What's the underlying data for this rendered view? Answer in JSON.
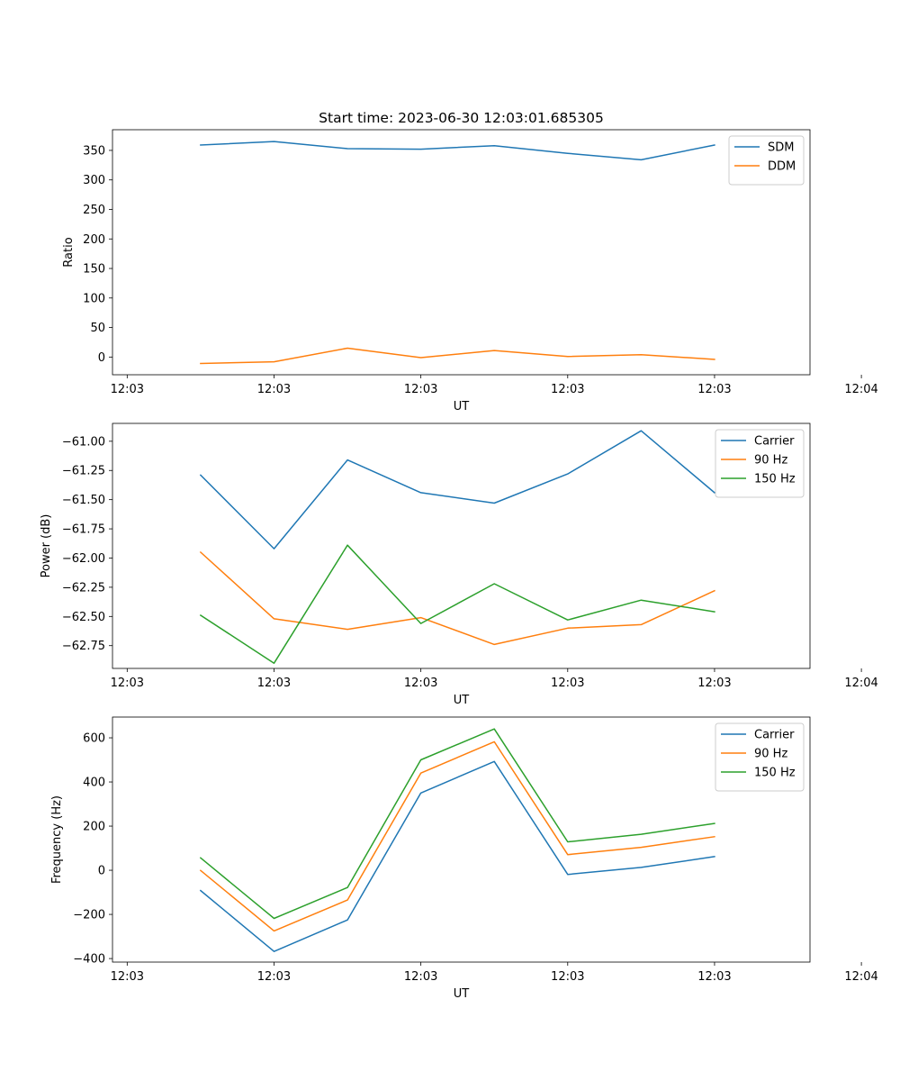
{
  "figure_title": "Start time: 2023-06-30 12:03:01.685305",
  "colors": {
    "c0": "#1f77b4",
    "c1": "#ff7f0e",
    "c2": "#2ca02c"
  },
  "chart_data": [
    {
      "type": "line",
      "title": "Start time: 2023-06-30 12:03:01.685305",
      "xlabel": "UT",
      "ylabel": "Ratio",
      "x": [
        1,
        2,
        3,
        4,
        5,
        6,
        7,
        8
      ],
      "xtick_positions": [
        0,
        2,
        4,
        6,
        8,
        10
      ],
      "xtick_labels": [
        "12:03",
        "12:03",
        "12:03",
        "12:03",
        "12:03",
        "12:04"
      ],
      "xlim": [
        -0.2,
        9.3
      ],
      "ylim": [
        -30,
        385
      ],
      "yticks": [
        0,
        50,
        100,
        150,
        200,
        250,
        300,
        350
      ],
      "ytick_labels": [
        "0",
        "50",
        "100",
        "150",
        "200",
        "250",
        "300",
        "350"
      ],
      "legend": "top-right",
      "series": [
        {
          "name": "SDM",
          "color": "#1f77b4",
          "values": [
            359,
            365,
            353,
            352,
            358,
            345,
            334,
            359
          ]
        },
        {
          "name": "DDM",
          "color": "#ff7f0e",
          "values": [
            -11,
            -8,
            15,
            -1,
            11,
            1,
            4,
            -4
          ]
        }
      ]
    },
    {
      "type": "line",
      "title": "",
      "xlabel": "UT",
      "ylabel": "Power (dB)",
      "x": [
        1,
        2,
        3,
        4,
        5,
        6,
        7,
        8
      ],
      "xtick_positions": [
        0,
        2,
        4,
        6,
        8,
        10
      ],
      "xtick_labels": [
        "12:03",
        "12:03",
        "12:03",
        "12:03",
        "12:03",
        "12:04"
      ],
      "xlim": [
        -0.2,
        9.3
      ],
      "ylim": [
        -62.945,
        -60.847
      ],
      "yticks": [
        -62.75,
        -62.5,
        -62.25,
        -62.0,
        -61.75,
        -61.5,
        -61.25,
        -61.0
      ],
      "ytick_labels": [
        "−62.75",
        "−62.50",
        "−62.25",
        "−62.00",
        "−61.75",
        "−61.50",
        "−61.25",
        "−61.00"
      ],
      "legend": "top-right",
      "series": [
        {
          "name": "Carrier",
          "color": "#1f77b4",
          "values": [
            -61.29,
            -61.92,
            -61.16,
            -61.44,
            -61.53,
            -61.28,
            -60.91,
            -61.44
          ]
        },
        {
          "name": "90 Hz",
          "color": "#ff7f0e",
          "values": [
            -61.95,
            -62.52,
            -62.61,
            -62.51,
            -62.74,
            -62.6,
            -62.57,
            -62.28
          ]
        },
        {
          "name": "150 Hz",
          "color": "#2ca02c",
          "values": [
            -62.49,
            -62.9,
            -61.89,
            -62.56,
            -62.22,
            -62.53,
            -62.36,
            -62.46
          ]
        }
      ]
    },
    {
      "type": "line",
      "title": "",
      "xlabel": "UT",
      "ylabel": "Frequency (Hz)",
      "x": [
        1,
        2,
        3,
        4,
        5,
        6,
        7,
        8
      ],
      "xtick_positions": [
        0,
        2,
        4,
        6,
        8,
        10
      ],
      "xtick_labels": [
        "12:03",
        "12:03",
        "12:03",
        "12:03",
        "12:03",
        "12:04"
      ],
      "xlim": [
        -0.2,
        9.3
      ],
      "ylim": [
        -416,
        694
      ],
      "yticks": [
        -400,
        -200,
        0,
        200,
        400,
        600
      ],
      "ytick_labels": [
        "−400",
        "−200",
        "0",
        "200",
        "400",
        "600"
      ],
      "legend": "top-right",
      "series": [
        {
          "name": "Carrier",
          "color": "#1f77b4",
          "values": [
            -92,
            -368,
            -225,
            350,
            493,
            -19,
            13,
            62
          ]
        },
        {
          "name": "90 Hz",
          "color": "#ff7f0e",
          "values": [
            -1,
            -275,
            -135,
            440,
            582,
            71,
            104,
            152
          ]
        },
        {
          "name": "150 Hz",
          "color": "#2ca02c",
          "values": [
            56,
            -218,
            -78,
            500,
            640,
            129,
            163,
            212
          ]
        }
      ]
    }
  ]
}
